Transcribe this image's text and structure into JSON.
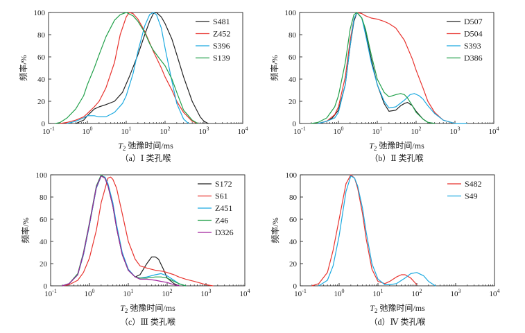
{
  "chart_data": [
    {
      "type": "line",
      "caption": "（a）Ⅰ 类孔喉",
      "xlabel": "T2 弛豫时间/ms",
      "ylabel": "频率/%",
      "xscale": "log",
      "xlim": [
        0.1,
        10000
      ],
      "ylim": [
        0,
        100
      ],
      "xticks": [
        "10-1",
        "100",
        "101",
        "102",
        "103",
        "104"
      ],
      "yticks": [
        "0",
        "20",
        "40",
        "60",
        "80",
        "100"
      ],
      "legend_position": "top-right",
      "series": [
        {
          "name": "S481",
          "color": "#222222",
          "x": [
            0.5,
            0.8,
            1,
            1.5,
            2,
            3,
            5,
            8,
            12,
            20,
            30,
            40,
            50,
            60,
            80,
            100,
            150,
            200,
            300,
            500,
            800,
            1000,
            1300
          ],
          "y": [
            0,
            3,
            7,
            13,
            15,
            17,
            20,
            28,
            42,
            62,
            80,
            92,
            99,
            100,
            96,
            90,
            76,
            62,
            42,
            20,
            6,
            2,
            0
          ]
        },
        {
          "name": "Z452",
          "color": "#e8332e",
          "x": [
            0.2,
            0.3,
            0.5,
            0.8,
            1,
            1.5,
            2,
            3,
            5,
            7,
            10,
            12,
            15,
            20,
            30,
            50,
            80,
            100,
            150,
            200,
            300,
            500,
            700
          ],
          "y": [
            0,
            1,
            3,
            6,
            9,
            15,
            20,
            32,
            55,
            80,
            96,
            100,
            99,
            94,
            83,
            65,
            50,
            42,
            30,
            20,
            10,
            2,
            0
          ]
        },
        {
          "name": "S396",
          "color": "#1aa9e0",
          "x": [
            0.3,
            0.5,
            0.8,
            1,
            1.5,
            2,
            3,
            5,
            8,
            10,
            15,
            20,
            30,
            40,
            50,
            60,
            80,
            100,
            150,
            200,
            300,
            400
          ],
          "y": [
            0,
            2,
            5,
            7,
            7,
            6,
            6,
            10,
            18,
            25,
            45,
            65,
            88,
            98,
            100,
            98,
            86,
            68,
            38,
            18,
            4,
            0
          ]
        },
        {
          "name": "S139",
          "color": "#21a04a",
          "x": [
            0.15,
            0.2,
            0.3,
            0.5,
            0.8,
            1,
            1.5,
            2,
            3,
            5,
            7,
            10,
            15,
            20,
            30,
            40,
            50,
            70,
            100,
            150,
            200,
            300,
            500,
            700
          ],
          "y": [
            0,
            1,
            5,
            13,
            25,
            35,
            50,
            62,
            78,
            93,
            98,
            100,
            97,
            92,
            82,
            72,
            66,
            59,
            52,
            40,
            28,
            12,
            3,
            0
          ]
        }
      ]
    },
    {
      "type": "line",
      "caption": "（b）Ⅱ 类孔喉",
      "xlabel": "T2 弛豫时间/ms",
      "ylabel": "频率/%",
      "xscale": "log",
      "xlim": [
        0.1,
        10000
      ],
      "ylim": [
        0,
        100
      ],
      "xticks": [
        "10-1",
        "100",
        "101",
        "102",
        "103",
        "104"
      ],
      "yticks": [
        "0",
        "20",
        "40",
        "60",
        "80",
        "100"
      ],
      "legend_position": "top-right",
      "series": [
        {
          "name": "D507",
          "color": "#222222",
          "x": [
            0.3,
            0.5,
            0.7,
            1,
            1.5,
            2,
            2.5,
            3,
            4,
            5,
            7,
            10,
            15,
            20,
            30,
            40,
            50,
            60,
            80,
            100,
            150,
            200,
            300
          ],
          "y": [
            0,
            2,
            5,
            12,
            35,
            70,
            92,
            100,
            95,
            82,
            58,
            35,
            18,
            11,
            12,
            16,
            18,
            19,
            16,
            11,
            4,
            1,
            0
          ]
        },
        {
          "name": "D504",
          "color": "#e8332e",
          "x": [
            0.3,
            0.5,
            0.8,
            1,
            1.5,
            2,
            2.5,
            3,
            4,
            5,
            7,
            10,
            15,
            20,
            30,
            50,
            80,
            100,
            150,
            200,
            300,
            500,
            800,
            1000
          ],
          "y": [
            0,
            2,
            8,
            15,
            42,
            75,
            94,
            100,
            99,
            97,
            95,
            94,
            92,
            90,
            86,
            75,
            58,
            48,
            32,
            20,
            10,
            3,
            1,
            0
          ]
        },
        {
          "name": "S393",
          "color": "#1aa9e0",
          "x": [
            0.3,
            0.5,
            0.8,
            1,
            1.5,
            2,
            2.5,
            3,
            4,
            5,
            7,
            10,
            15,
            20,
            30,
            50,
            70,
            90,
            120,
            150,
            200,
            300,
            500,
            800,
            1000,
            2000
          ],
          "y": [
            0,
            2,
            5,
            10,
            35,
            70,
            94,
            100,
            95,
            80,
            55,
            35,
            20,
            14,
            15,
            21,
            26,
            27,
            25,
            22,
            16,
            9,
            3,
            1,
            0,
            0
          ]
        },
        {
          "name": "D386",
          "color": "#21a04a",
          "x": [
            0.2,
            0.3,
            0.5,
            0.8,
            1,
            1.5,
            2,
            2.5,
            3,
            4,
            5,
            7,
            10,
            15,
            20,
            30,
            40,
            50,
            60,
            80,
            100,
            150,
            200,
            300
          ],
          "y": [
            0,
            1,
            5,
            15,
            25,
            55,
            85,
            98,
            100,
            95,
            85,
            62,
            40,
            28,
            24,
            26,
            27,
            26,
            23,
            16,
            10,
            4,
            1,
            0
          ]
        }
      ]
    },
    {
      "type": "line",
      "caption": "（c）Ⅲ 类孔喉",
      "xlabel": "T2 弛豫时间/ms",
      "ylabel": "频率/%",
      "xscale": "log",
      "xlim": [
        0.1,
        10000
      ],
      "ylim": [
        0,
        100
      ],
      "xticks": [
        "10-1",
        "100",
        "101",
        "102",
        "103",
        "104"
      ],
      "yticks": [
        "0",
        "20",
        "40",
        "60",
        "80",
        "100"
      ],
      "legend_position": "top-right",
      "series": [
        {
          "name": "S172",
          "color": "#222222",
          "x": [
            0.2,
            0.3,
            0.5,
            0.7,
            1,
            1.5,
            2,
            2.5,
            3,
            4,
            5,
            7,
            10,
            15,
            20,
            30,
            40,
            50,
            60,
            80,
            100,
            150,
            200
          ],
          "y": [
            0,
            2,
            10,
            28,
            55,
            88,
            99,
            97,
            90,
            72,
            52,
            28,
            14,
            8,
            10,
            20,
            26,
            26,
            24,
            15,
            7,
            2,
            0
          ]
        },
        {
          "name": "S61",
          "color": "#e8332e",
          "x": [
            0.2,
            0.3,
            0.5,
            0.7,
            1,
            1.5,
            2,
            3,
            3.5,
            4,
            5,
            7,
            10,
            15,
            20,
            30,
            50,
            80,
            100,
            150,
            200,
            300,
            500,
            800,
            1000,
            1500
          ],
          "y": [
            0,
            1,
            5,
            12,
            25,
            50,
            75,
            97,
            98,
            96,
            88,
            65,
            40,
            24,
            18,
            16,
            14,
            13,
            12,
            10,
            8,
            6,
            4,
            2,
            1,
            0
          ]
        },
        {
          "name": "Z451",
          "color": "#1aa9e0",
          "x": [
            0.2,
            0.3,
            0.5,
            0.7,
            1,
            1.5,
            2,
            2.5,
            3,
            4,
            5,
            7,
            10,
            15,
            20,
            30,
            50,
            70,
            100,
            150,
            200,
            300
          ],
          "y": [
            0,
            2,
            10,
            28,
            55,
            88,
            99,
            98,
            92,
            75,
            55,
            30,
            15,
            8,
            7,
            8,
            10,
            11,
            9,
            5,
            2,
            0
          ]
        },
        {
          "name": "Z46",
          "color": "#21a04a",
          "x": [
            0.2,
            0.3,
            0.5,
            0.7,
            1,
            1.5,
            2,
            2.5,
            3,
            4,
            5,
            7,
            10,
            15,
            20,
            30,
            50,
            70,
            100,
            150,
            200,
            300
          ],
          "y": [
            0,
            2,
            11,
            30,
            57,
            90,
            100,
            97,
            90,
            72,
            52,
            28,
            14,
            8,
            7,
            7,
            8,
            8,
            7,
            4,
            2,
            0
          ]
        },
        {
          "name": "D326",
          "color": "#a0219c",
          "x": [
            0.2,
            0.3,
            0.5,
            0.7,
            1,
            1.5,
            2,
            2.5,
            3,
            4,
            5,
            7,
            10,
            15,
            20,
            30,
            50,
            70,
            100,
            150,
            200
          ],
          "y": [
            0,
            2,
            10,
            29,
            56,
            89,
            99,
            97,
            90,
            72,
            52,
            28,
            14,
            8,
            6,
            6,
            5,
            4,
            3,
            1,
            0
          ]
        }
      ]
    },
    {
      "type": "line",
      "caption": "（d）Ⅳ 类孔喉",
      "xlabel": "T2 弛豫时间/ms",
      "ylabel": "频率/%",
      "xscale": "log",
      "xlim": [
        0.1,
        10000
      ],
      "ylim": [
        0,
        100
      ],
      "xticks": [
        "10-1",
        "100",
        "101",
        "102",
        "103",
        "104"
      ],
      "yticks": [
        "0",
        "20",
        "40",
        "60",
        "80",
        "100"
      ],
      "legend_position": "top-right",
      "series": [
        {
          "name": "S482",
          "color": "#e8332e",
          "x": [
            0.2,
            0.3,
            0.5,
            0.7,
            1,
            1.5,
            2,
            2.5,
            3,
            4,
            5,
            7,
            10,
            15,
            20,
            30,
            40,
            50,
            70,
            100
          ],
          "y": [
            0,
            2,
            12,
            32,
            60,
            92,
            100,
            97,
            88,
            65,
            42,
            15,
            4,
            2,
            4,
            8,
            10,
            10,
            7,
            1
          ]
        },
        {
          "name": "S49",
          "color": "#1aa9e0",
          "x": [
            0.3,
            0.5,
            0.7,
            1,
            1.5,
            2,
            2.5,
            3,
            4,
            5,
            7,
            10,
            15,
            20,
            30,
            50,
            70,
            100,
            150,
            200,
            300
          ],
          "y": [
            0,
            5,
            18,
            45,
            85,
            99,
            97,
            90,
            70,
            48,
            20,
            6,
            1,
            1,
            2,
            7,
            11,
            12,
            9,
            4,
            0
          ]
        }
      ]
    }
  ]
}
